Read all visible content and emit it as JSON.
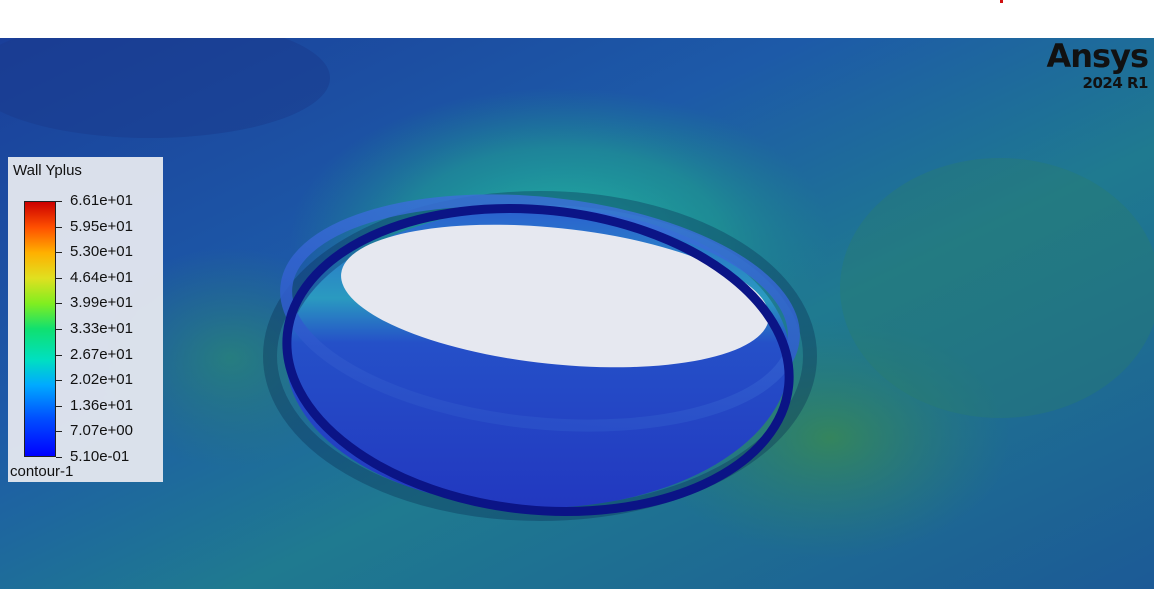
{
  "colorbar": {
    "title": "Wall Yplus",
    "ticks": [
      "6.61e+01",
      "5.95e+01",
      "5.30e+01",
      "4.64e+01",
      "3.99e+01",
      "3.33e+01",
      "2.67e+01",
      "2.02e+01",
      "1.36e+01",
      "7.07e+00",
      "5.10e-01"
    ],
    "footer": "contour-1",
    "colors": [
      "#0000ff",
      "#00aaff",
      "#10e070",
      "#e0e020",
      "#ff5000",
      "#cc0000"
    ]
  },
  "brand": {
    "name": "Ansys",
    "version": "2024 R1"
  }
}
